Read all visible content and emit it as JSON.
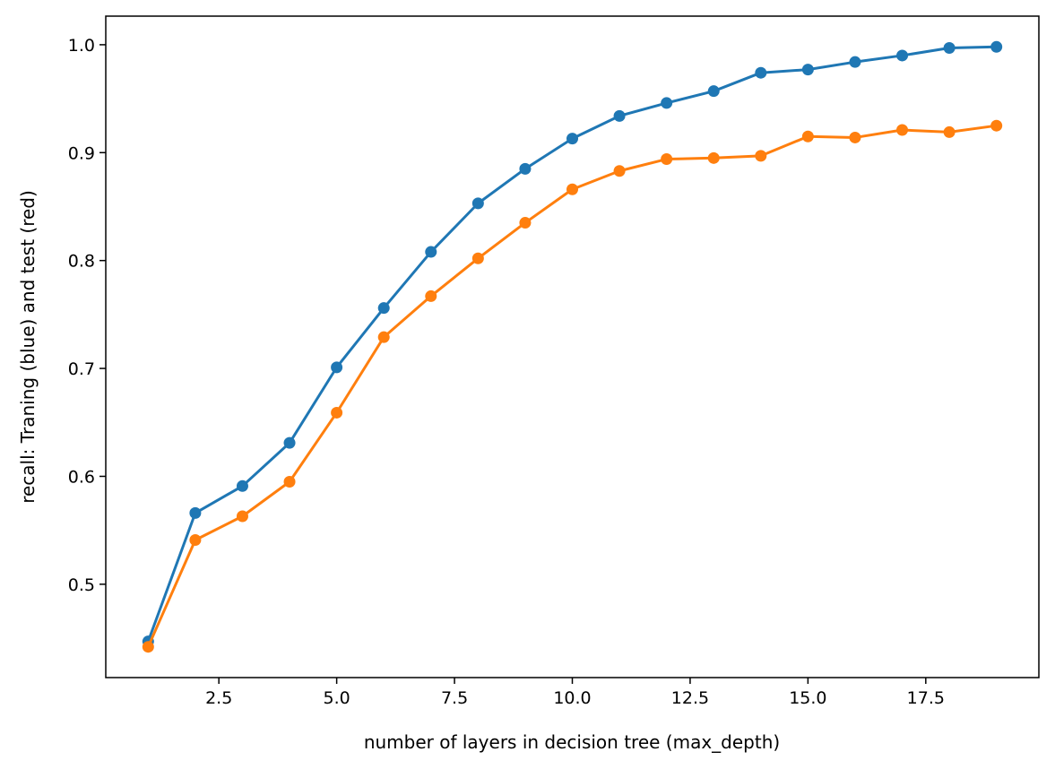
{
  "chart_data": {
    "type": "line",
    "xlabel": "number of layers in decision tree (max_depth)",
    "ylabel": "recall: Traning (blue) and test (red)",
    "xlim": [
      0.1,
      19.9
    ],
    "ylim": [
      0.4135,
      1.0265
    ],
    "x_ticks": [
      2.5,
      5.0,
      7.5,
      10.0,
      12.5,
      15.0,
      17.5
    ],
    "x_tick_labels": [
      "2.5",
      "5.0",
      "7.5",
      "10.0",
      "12.5",
      "15.0",
      "17.5"
    ],
    "y_ticks": [
      0.5,
      0.6,
      0.7,
      0.8,
      0.9,
      1.0
    ],
    "y_tick_labels": [
      "0.5",
      "0.6",
      "0.7",
      "0.8",
      "0.9",
      "1.0"
    ],
    "grid": false,
    "x": [
      1,
      2,
      3,
      4,
      5,
      6,
      7,
      8,
      9,
      10,
      11,
      12,
      13,
      14,
      15,
      16,
      17,
      18,
      19
    ],
    "series": [
      {
        "color": "#1f77b4",
        "values": [
          0.447,
          0.566,
          0.591,
          0.631,
          0.701,
          0.756,
          0.808,
          0.853,
          0.885,
          0.913,
          0.934,
          0.946,
          0.957,
          0.974,
          0.977,
          0.984,
          0.99,
          0.997,
          0.998
        ]
      },
      {
        "color": "#ff7f0e",
        "values": [
          0.442,
          0.541,
          0.563,
          0.595,
          0.659,
          0.729,
          0.767,
          0.802,
          0.835,
          0.866,
          0.883,
          0.894,
          0.895,
          0.897,
          0.915,
          0.914,
          0.921,
          0.919,
          0.925
        ]
      }
    ]
  }
}
